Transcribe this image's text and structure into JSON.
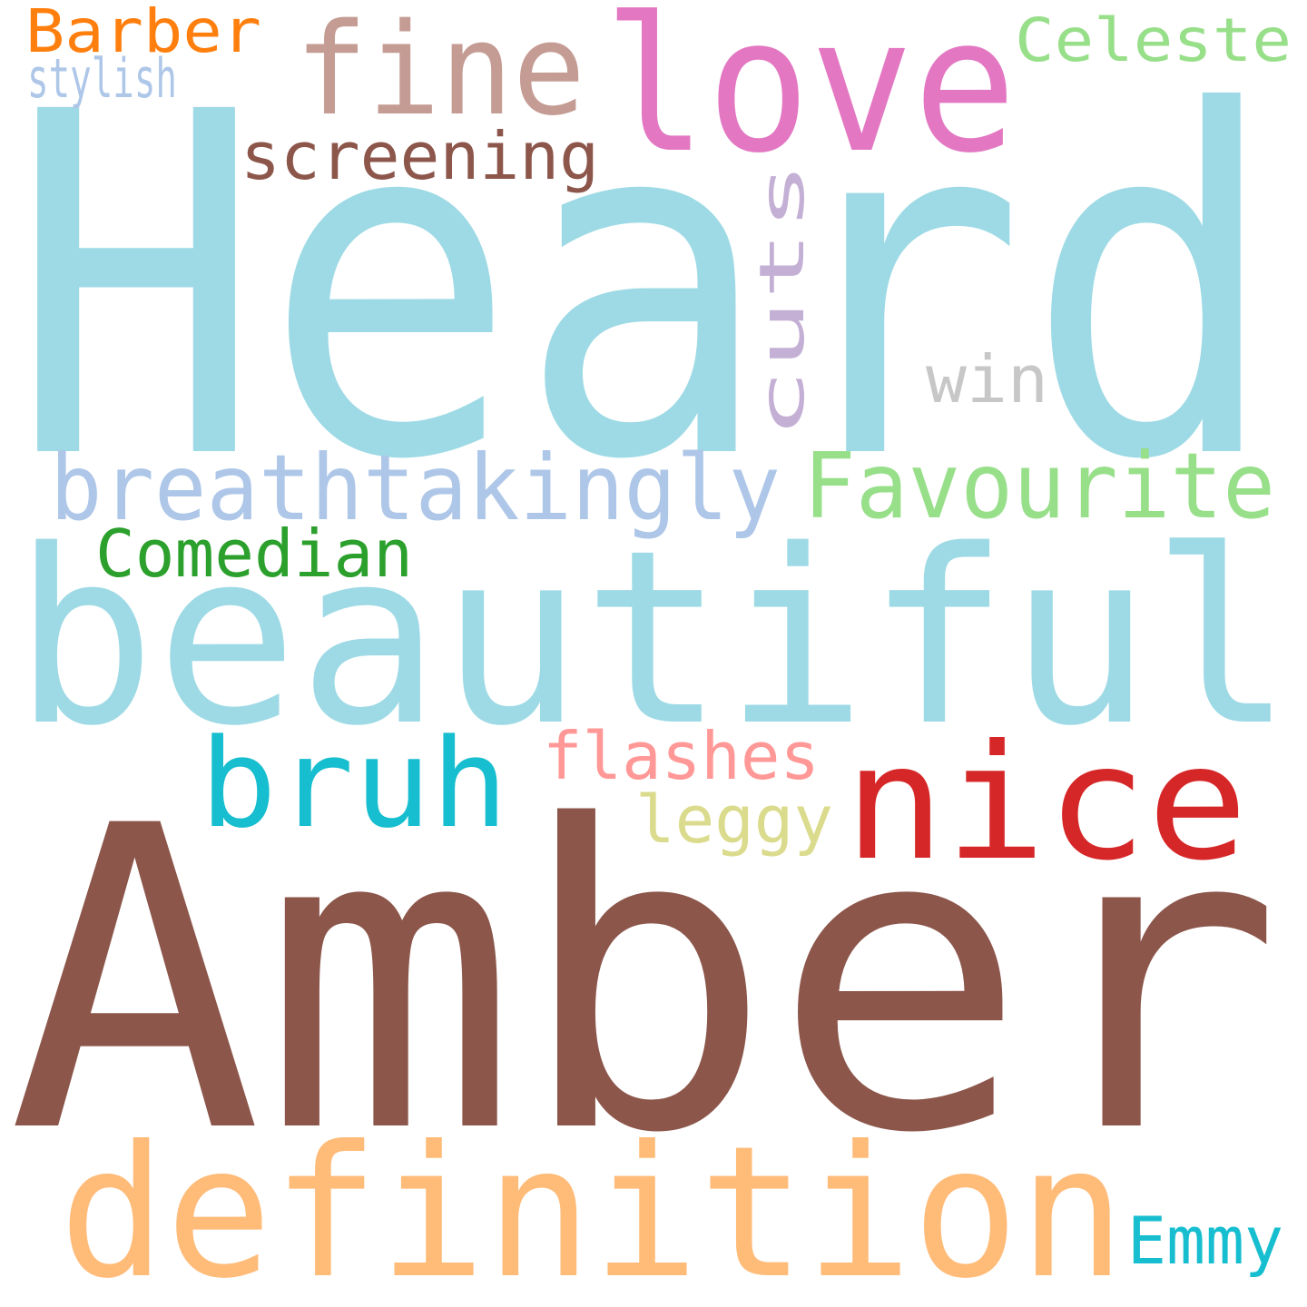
{
  "words": [
    {
      "id": "heard",
      "text": "Heard",
      "color": "#9edae5"
    },
    {
      "id": "amber",
      "text": "Amber",
      "color": "#8c564b"
    },
    {
      "id": "beautiful",
      "text": "beautiful",
      "color": "#9edae5"
    },
    {
      "id": "definition",
      "text": "definition",
      "color": "#ffbb78"
    },
    {
      "id": "love",
      "text": "love",
      "color": "#e377c2"
    },
    {
      "id": "fine",
      "text": "fine",
      "color": "#c49c94"
    },
    {
      "id": "nice",
      "text": "nice",
      "color": "#d62728"
    },
    {
      "id": "bruh",
      "text": "bruh",
      "color": "#17becf"
    },
    {
      "id": "breathtakingly",
      "text": "breathtakingly",
      "color": "#aec7e8"
    },
    {
      "id": "favourite",
      "text": "Favourite",
      "color": "#98df8a"
    },
    {
      "id": "screening",
      "text": "screening",
      "color": "#8c564b"
    },
    {
      "id": "comedian",
      "text": "Comedian",
      "color": "#2ca02c"
    },
    {
      "id": "flashes",
      "text": "flashes",
      "color": "#ff9896"
    },
    {
      "id": "celeste",
      "text": "Celeste",
      "color": "#98df8a"
    },
    {
      "id": "barber",
      "text": "Barber",
      "color": "#ff7f0e"
    },
    {
      "id": "stylish",
      "text": "stylish",
      "color": "#c5b0d5"
    },
    {
      "id": "cuts",
      "text": "cuts",
      "color": "#aec7e8"
    },
    {
      "id": "leggy",
      "text": "leggy",
      "color": "#dbdb8d"
    },
    {
      "id": "win",
      "text": "win",
      "color": "#c7c7c7"
    },
    {
      "id": "emmy",
      "text": "Emmy",
      "color": "#17becf"
    }
  ]
}
